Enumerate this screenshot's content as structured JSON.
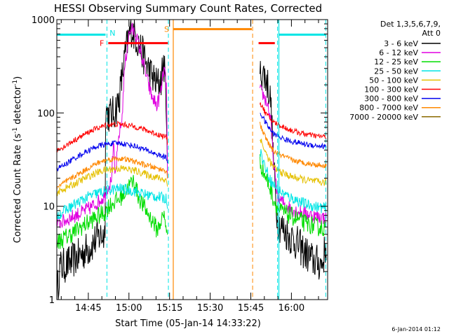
{
  "chart_data": {
    "type": "line",
    "title": "HESSI Observing Summary Count Rates, Corrected",
    "xlabel": "Start Time (05-Jan-14 14:33:22)",
    "ylabel_main": "Corrected Count Rate (s",
    "ylabel_sup1": "-1",
    "ylabel_mid": " detector",
    "ylabel_sup2": "-1",
    "ylabel_end": ")",
    "y_scale": "log",
    "ylim": [
      1,
      1000
    ],
    "x_unit": "minutes since 14:33:22",
    "xlim": [
      0,
      100
    ],
    "x_ticks": [
      {
        "value": 11.63,
        "label": "14:45"
      },
      {
        "value": 26.63,
        "label": "15:00"
      },
      {
        "value": 41.63,
        "label": "15:15"
      },
      {
        "value": 56.63,
        "label": "15:30"
      },
      {
        "value": 71.63,
        "label": "15:45"
      },
      {
        "value": 86.63,
        "label": "16:00"
      }
    ],
    "y_ticks": [
      {
        "value": 1,
        "label": "1"
      },
      {
        "value": 10,
        "label": "10"
      },
      {
        "value": 100,
        "label": "100"
      },
      {
        "value": 1000,
        "label": "1000"
      }
    ],
    "legend": {
      "placement": "outside-right",
      "header_line1": "Det 1,3,5,6,7,9,",
      "header_line2": "Att 0",
      "entries": [
        {
          "label": "3 - 6 keV",
          "color": "#000000"
        },
        {
          "label": "6 - 12 keV",
          "color": "#e000e0"
        },
        {
          "label": "12 - 25 keV",
          "color": "#00dd00"
        },
        {
          "label": "25 - 50 keV",
          "color": "#00e5e5"
        },
        {
          "label": "50 - 100 keV",
          "color": "#e5c000"
        },
        {
          "label": "100 - 300 keV",
          "color": "#ff0000"
        },
        {
          "label": "300 - 800 keV",
          "color": "#0000ee"
        },
        {
          "label": "800 - 7000 keV",
          "color": "#ff8800"
        },
        {
          "label": "7000 - 20000 keV",
          "color": "#8b6a00"
        }
      ]
    },
    "segments": [
      [
        0,
        41
      ],
      [
        75,
        100
      ]
    ],
    "series": [
      {
        "name": "3 - 6 keV",
        "color": "#000000",
        "noise": 0.2,
        "points": [
          [
            0,
            1.1
          ],
          [
            0.5,
            1.5
          ],
          [
            1,
            2.2
          ],
          [
            4,
            2.4
          ],
          [
            8,
            2.9
          ],
          [
            12,
            3.6
          ],
          [
            15,
            4.6
          ],
          [
            17.8,
            5.1
          ],
          [
            18,
            110
          ],
          [
            19,
            95
          ],
          [
            21,
            98
          ],
          [
            23,
            140
          ],
          [
            25,
            380
          ],
          [
            26.5,
            650
          ],
          [
            27.5,
            800
          ],
          [
            29,
            680
          ],
          [
            31,
            480
          ],
          [
            33,
            340
          ],
          [
            35,
            250
          ],
          [
            37,
            200
          ],
          [
            38.5,
            230
          ],
          [
            39.5,
            360
          ],
          [
            40.5,
            120
          ],
          [
            41,
            10
          ],
          [
            75,
            260
          ],
          [
            76,
            270
          ],
          [
            77,
            240
          ],
          [
            78,
            200
          ],
          [
            79,
            130
          ],
          [
            80,
            30
          ],
          [
            81,
            10
          ],
          [
            82,
            6.5
          ],
          [
            84,
            5.5
          ],
          [
            86,
            4.8
          ],
          [
            88,
            4.2
          ],
          [
            90,
            3.6
          ],
          [
            92,
            3.1
          ],
          [
            94,
            2.7
          ],
          [
            96,
            2.5
          ],
          [
            98,
            2.4
          ],
          [
            99.5,
            4
          ]
        ]
      },
      {
        "name": "6 - 12 keV",
        "color": "#e000e0",
        "noise": 0.08,
        "points": [
          [
            0,
            6.5
          ],
          [
            3,
            7
          ],
          [
            6,
            7.8
          ],
          [
            9,
            8.5
          ],
          [
            12,
            9.5
          ],
          [
            15,
            11
          ],
          [
            17.8,
            13
          ],
          [
            18,
            15
          ],
          [
            20,
            18
          ],
          [
            21,
            45
          ],
          [
            21.5,
            20
          ],
          [
            23,
            60
          ],
          [
            24,
            80
          ],
          [
            25,
            300
          ],
          [
            26.5,
            650
          ],
          [
            27.5,
            800
          ],
          [
            29,
            700
          ],
          [
            31,
            450
          ],
          [
            33,
            250
          ],
          [
            35,
            150
          ],
          [
            37,
            120
          ],
          [
            38.5,
            170
          ],
          [
            39.5,
            300
          ],
          [
            40.5,
            200
          ],
          [
            41,
            8
          ],
          [
            75,
            170
          ],
          [
            76,
            160
          ],
          [
            77,
            140
          ],
          [
            78,
            120
          ],
          [
            79,
            80
          ],
          [
            80,
            30
          ],
          [
            81,
            16
          ],
          [
            82,
            12
          ],
          [
            85,
            10
          ],
          [
            88,
            9
          ],
          [
            91,
            8.5
          ],
          [
            94,
            8
          ],
          [
            97,
            7.6
          ],
          [
            99.5,
            7.5
          ]
        ]
      },
      {
        "name": "12 - 25 keV",
        "color": "#00dd00",
        "noise": 0.1,
        "points": [
          [
            0,
            4.1
          ],
          [
            3,
            4.6
          ],
          [
            6,
            5.2
          ],
          [
            9,
            6
          ],
          [
            12,
            6.8
          ],
          [
            15,
            7.8
          ],
          [
            17.8,
            8.5
          ],
          [
            19,
            10
          ],
          [
            21,
            11
          ],
          [
            23,
            12
          ],
          [
            25,
            14
          ],
          [
            27,
            17
          ],
          [
            28.5,
            19
          ],
          [
            30,
            13
          ],
          [
            32,
            10
          ],
          [
            34,
            8
          ],
          [
            36,
            6.5
          ],
          [
            37,
            5.5
          ],
          [
            38,
            6.5
          ],
          [
            39.5,
            8
          ],
          [
            40.5,
            6
          ],
          [
            41,
            4
          ],
          [
            75,
            30
          ],
          [
            76,
            25
          ],
          [
            77,
            21
          ],
          [
            78,
            18
          ],
          [
            79,
            15
          ],
          [
            80,
            12
          ],
          [
            82,
            9
          ],
          [
            84,
            8.5
          ],
          [
            86,
            8
          ],
          [
            88,
            7.5
          ],
          [
            90,
            7
          ],
          [
            92,
            6.5
          ],
          [
            94,
            6.3
          ],
          [
            96,
            6
          ],
          [
            98,
            5.9
          ],
          [
            99.5,
            5.8
          ]
        ]
      },
      {
        "name": "25 - 50 keV",
        "color": "#00e5e5",
        "noise": 0.06,
        "points": [
          [
            0,
            8
          ],
          [
            3,
            9
          ],
          [
            6,
            10.2
          ],
          [
            9,
            11.5
          ],
          [
            12,
            12.8
          ],
          [
            15,
            13.8
          ],
          [
            17.8,
            14.5
          ],
          [
            20,
            15
          ],
          [
            23,
            15.5
          ],
          [
            26,
            15
          ],
          [
            29,
            14.5
          ],
          [
            32,
            13.5
          ],
          [
            35,
            13
          ],
          [
            38,
            12.5
          ],
          [
            40.5,
            12
          ],
          [
            41,
            9
          ],
          [
            75,
            40
          ],
          [
            76,
            32
          ],
          [
            77,
            26
          ],
          [
            78,
            22
          ],
          [
            79,
            19
          ],
          [
            80,
            17
          ],
          [
            83,
            14
          ],
          [
            86,
            12.5
          ],
          [
            89,
            11.5
          ],
          [
            92,
            10.5
          ],
          [
            95,
            10
          ],
          [
            98,
            9.6
          ],
          [
            99.5,
            9.5
          ]
        ]
      },
      {
        "name": "50 - 100 keV",
        "color": "#e5c000",
        "noise": 0.04,
        "points": [
          [
            0,
            14
          ],
          [
            3,
            15.5
          ],
          [
            6,
            17
          ],
          [
            9,
            19
          ],
          [
            12,
            21
          ],
          [
            15,
            23
          ],
          [
            17.8,
            24.5
          ],
          [
            20,
            25
          ],
          [
            23,
            25.5
          ],
          [
            26,
            25
          ],
          [
            29,
            24
          ],
          [
            32,
            22.5
          ],
          [
            35,
            21
          ],
          [
            38,
            20
          ],
          [
            40.5,
            19
          ],
          [
            41,
            15
          ],
          [
            75,
            55
          ],
          [
            76,
            45
          ],
          [
            77,
            38
          ],
          [
            78,
            33
          ],
          [
            79,
            29
          ],
          [
            80,
            26
          ],
          [
            83,
            23
          ],
          [
            86,
            21
          ],
          [
            89,
            20
          ],
          [
            92,
            19
          ],
          [
            95,
            18.5
          ],
          [
            98,
            18
          ],
          [
            99.5,
            18
          ]
        ]
      },
      {
        "name": "100 - 300 keV",
        "color": "#ff0000",
        "noise": 0.03,
        "points": [
          [
            0,
            40
          ],
          [
            3,
            44
          ],
          [
            6,
            50
          ],
          [
            9,
            56
          ],
          [
            12,
            63
          ],
          [
            15,
            69
          ],
          [
            17.8,
            73
          ],
          [
            20,
            75
          ],
          [
            23,
            76
          ],
          [
            26,
            74
          ],
          [
            29,
            71
          ],
          [
            32,
            67
          ],
          [
            35,
            62
          ],
          [
            38,
            58
          ],
          [
            40.5,
            55
          ],
          [
            41,
            45
          ],
          [
            75,
            130
          ],
          [
            76,
            115
          ],
          [
            77,
            100
          ],
          [
            78,
            92
          ],
          [
            79,
            85
          ],
          [
            80,
            80
          ],
          [
            83,
            72
          ],
          [
            86,
            66
          ],
          [
            89,
            62
          ],
          [
            92,
            59
          ],
          [
            95,
            57
          ],
          [
            98,
            56
          ],
          [
            99.5,
            55
          ]
        ]
      },
      {
        "name": "300 - 800 keV",
        "color": "#0000ee",
        "noise": 0.03,
        "points": [
          [
            0,
            25
          ],
          [
            3,
            28
          ],
          [
            6,
            32
          ],
          [
            9,
            36
          ],
          [
            12,
            40
          ],
          [
            15,
            44
          ],
          [
            17.8,
            46
          ],
          [
            20,
            47
          ],
          [
            23,
            47.5
          ],
          [
            26,
            46
          ],
          [
            29,
            44
          ],
          [
            32,
            41
          ],
          [
            35,
            38
          ],
          [
            38,
            35
          ],
          [
            40.5,
            33
          ],
          [
            41,
            28
          ],
          [
            75,
            100
          ],
          [
            76,
            90
          ],
          [
            77,
            80
          ],
          [
            78,
            72
          ],
          [
            79,
            65
          ],
          [
            80,
            60
          ],
          [
            83,
            54
          ],
          [
            86,
            50
          ],
          [
            89,
            48
          ],
          [
            92,
            46
          ],
          [
            95,
            45
          ],
          [
            98,
            44
          ],
          [
            99.5,
            43
          ]
        ]
      },
      {
        "name": "800 - 7000 keV",
        "color": "#ff8800",
        "noise": 0.03,
        "points": [
          [
            0,
            16
          ],
          [
            3,
            18
          ],
          [
            6,
            20.5
          ],
          [
            9,
            23
          ],
          [
            12,
            26
          ],
          [
            15,
            29
          ],
          [
            17.8,
            31
          ],
          [
            20,
            32
          ],
          [
            23,
            32.5
          ],
          [
            26,
            31.5
          ],
          [
            29,
            30
          ],
          [
            32,
            28
          ],
          [
            35,
            26.5
          ],
          [
            38,
            25
          ],
          [
            40.5,
            24
          ],
          [
            41,
            20
          ],
          [
            75,
            75
          ],
          [
            76,
            64
          ],
          [
            77,
            55
          ],
          [
            78,
            48
          ],
          [
            79,
            43
          ],
          [
            80,
            39
          ],
          [
            83,
            35
          ],
          [
            86,
            32
          ],
          [
            89,
            30
          ],
          [
            92,
            29
          ],
          [
            95,
            28
          ],
          [
            98,
            27.5
          ],
          [
            99.5,
            27
          ]
        ]
      },
      {
        "name": "7000 - 20000 keV",
        "color": "#8b6a00",
        "noise": 0.03,
        "points": []
      }
    ],
    "bars": [
      {
        "label": "",
        "color": "#00e5e5",
        "y": 690,
        "x_start": 0,
        "x_end": 18
      },
      {
        "label": "",
        "color": "#00e5e5",
        "y": 690,
        "x_start": 82,
        "x_end": 99.5
      },
      {
        "label": "F",
        "color": "#ff0000",
        "y": 560,
        "x_start": 19,
        "x_end": 41
      },
      {
        "label": "",
        "color": "#ff0000",
        "y": 560,
        "x_start": 74.5,
        "x_end": 80.5
      },
      {
        "label": "S",
        "color": "#ff8800",
        "y": 790,
        "x_start": 43,
        "x_end": 72
      }
    ],
    "markers": [
      {
        "label": "N",
        "color": "#00e5e5",
        "x": 18.5
      },
      {
        "label": "",
        "color": "#00e5e5",
        "x": 81.5
      },
      {
        "label": "",
        "color": "#00e5e5",
        "x": 99.3
      },
      {
        "label": "",
        "color": "#ff8800",
        "x": 72.3
      },
      {
        "label": "",
        "color": "#00e5e5",
        "x": 41.2
      }
    ],
    "solid_verticals": [
      {
        "color": "#ff8800",
        "x": 43
      },
      {
        "color": "#00e5e5",
        "x": 82
      }
    ]
  },
  "footer": {
    "date": "6-Jan-2014 01:12"
  }
}
